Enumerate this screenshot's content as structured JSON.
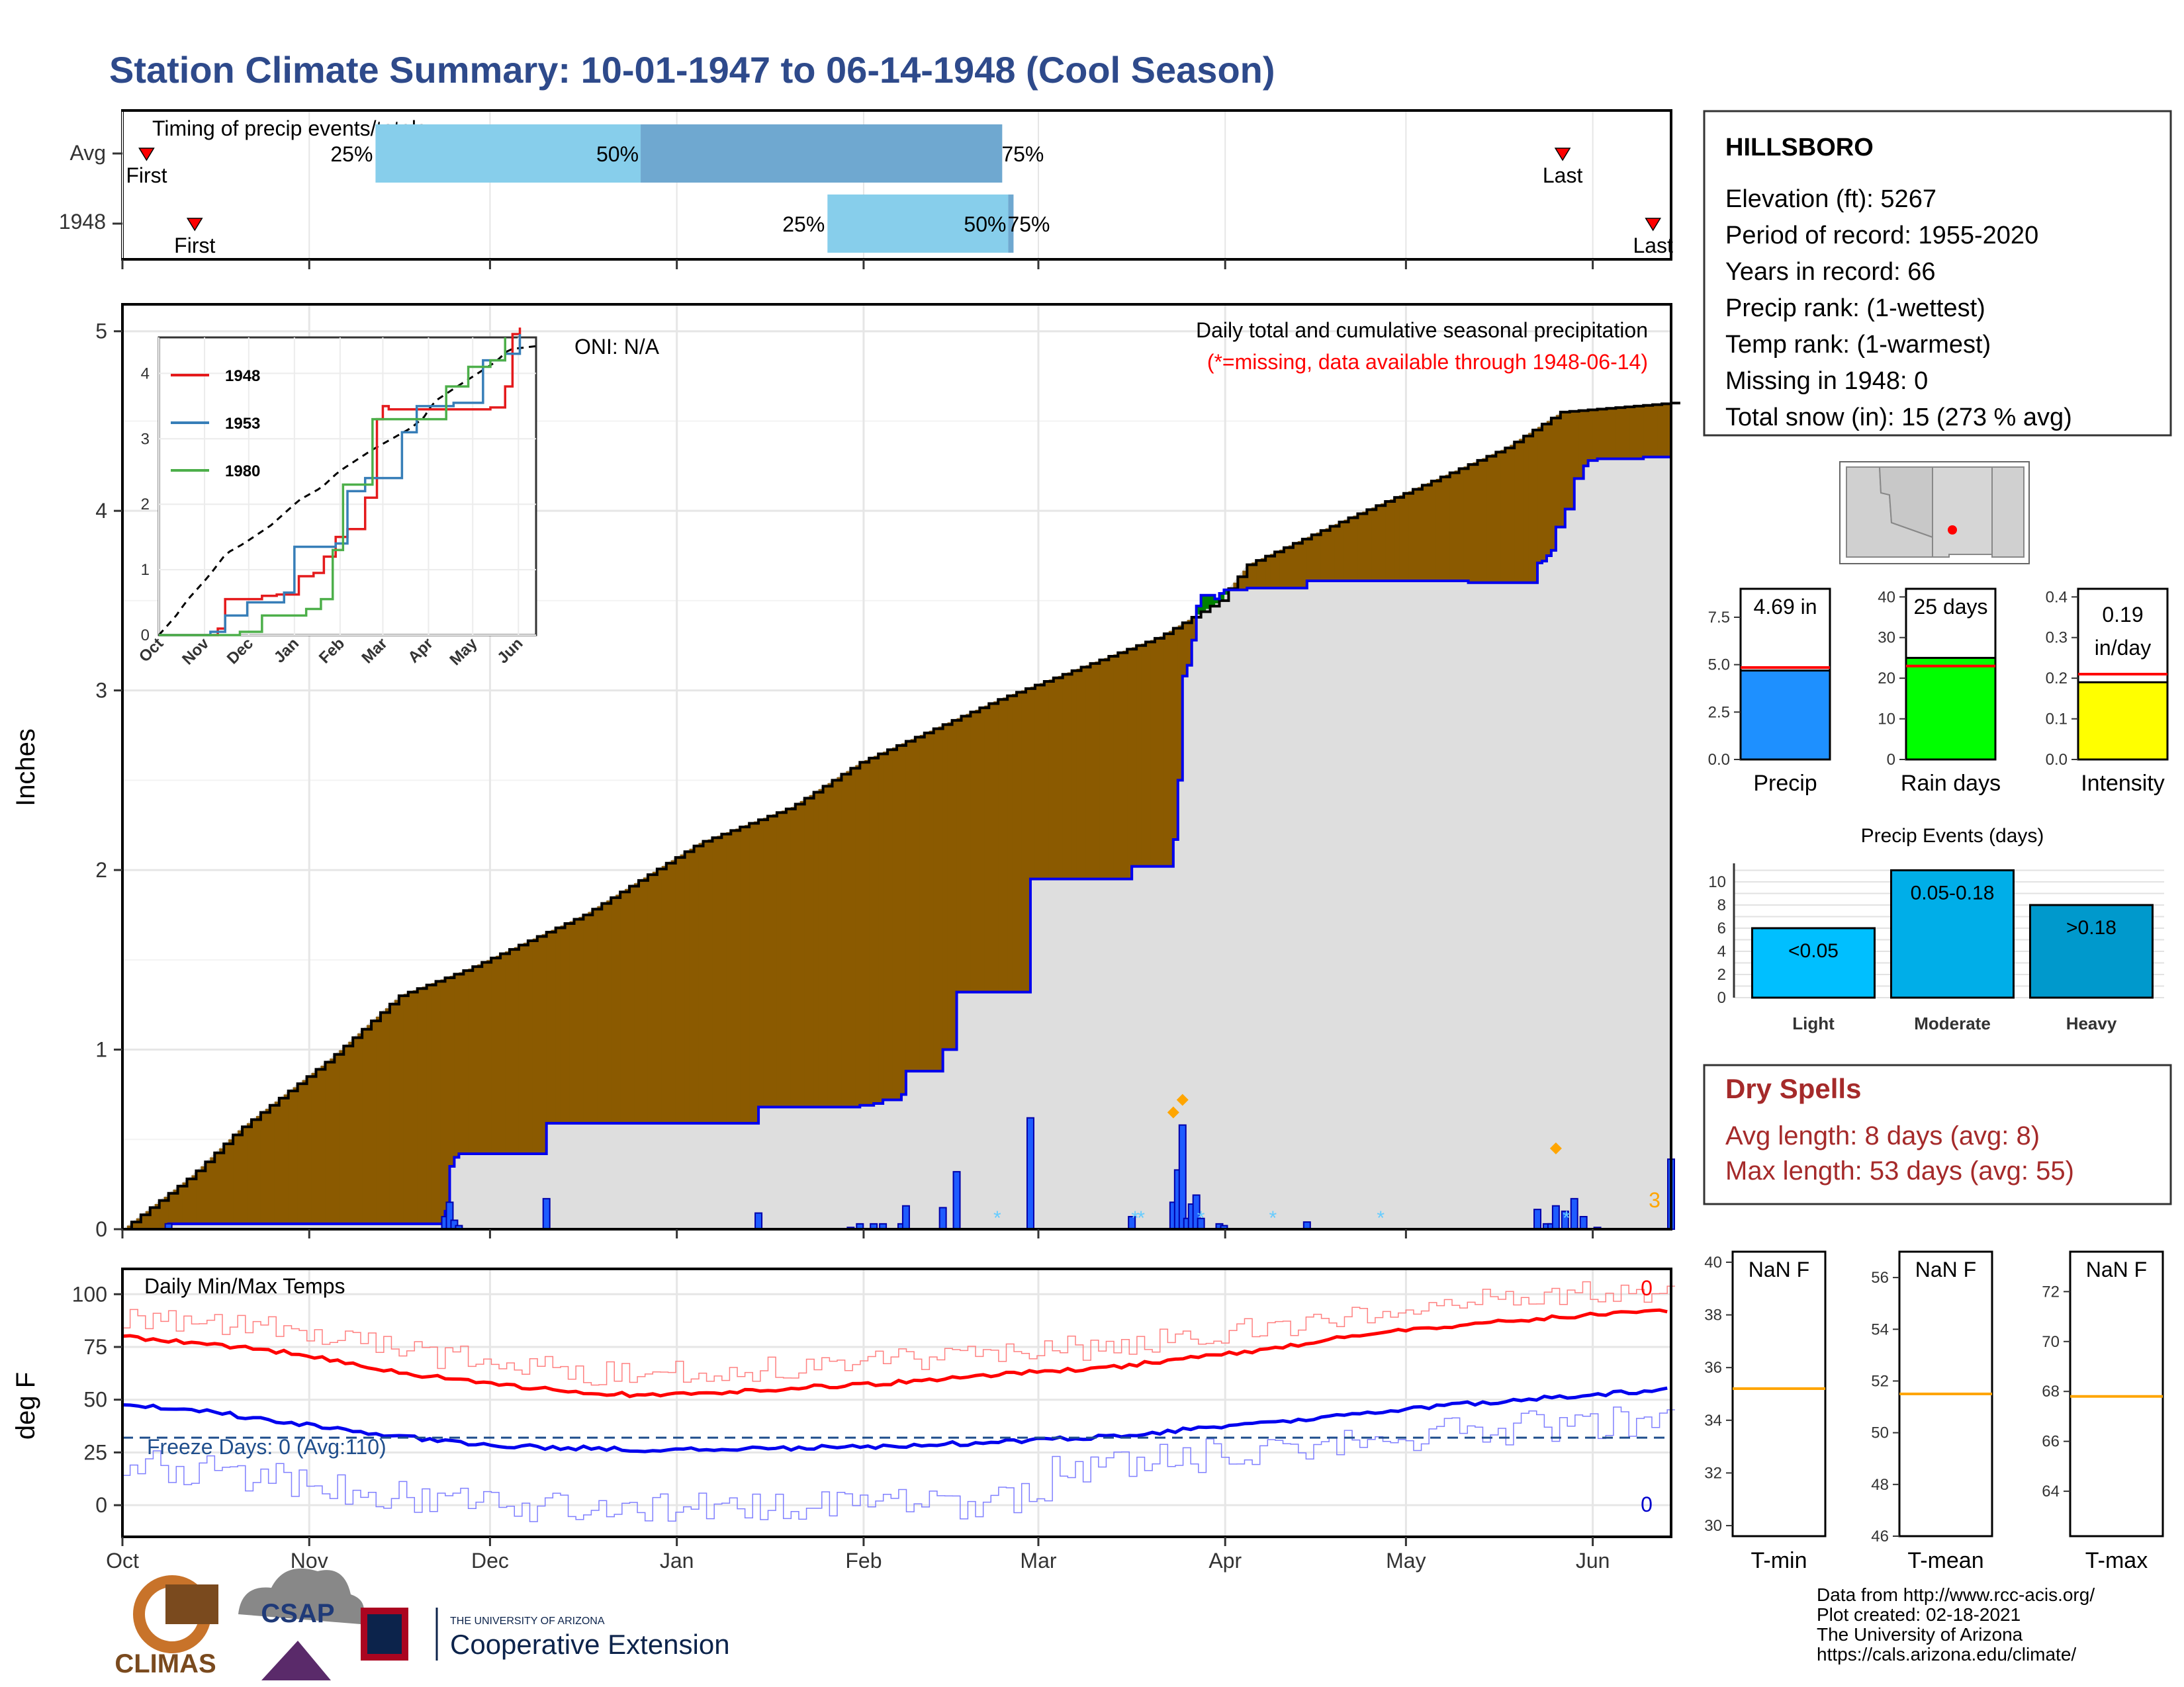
{
  "title": "Station Climate Summary: 10-01-1947 to 06-14-1948 (Cool Season)",
  "months": [
    "Oct",
    "Nov",
    "Dec",
    "Jan",
    "Feb",
    "Mar",
    "Apr",
    "May",
    "Jun"
  ],
  "timing": {
    "title": "Timing of precip events/totals",
    "rows": [
      {
        "label": "Avg",
        "first_label": "First",
        "last_label": "Last",
        "first_day": 4,
        "last_day": 239,
        "q25": 42,
        "q50": 86,
        "q75": 146,
        "q25_label": "25%",
        "q50_label": "50%",
        "q75_label": "75%"
      },
      {
        "label": "1948",
        "first_label": "First",
        "last_label": "Last",
        "first_day": 12,
        "last_day": 254,
        "q25": 117,
        "q50": 147,
        "q75": 147,
        "q25_label": "25%",
        "q50_label": "50%",
        "q75_label": "75%"
      }
    ]
  },
  "precip_panel": {
    "title": "Daily total and cumulative seasonal precipitation",
    "subtitle": "(*=missing, data available through 1948-06-14)",
    "oni": "ONI: N/A",
    "ylabel": "Inches",
    "y_ticks": [
      "0",
      "1",
      "2",
      "3",
      "4",
      "5"
    ],
    "corner_count": "3"
  },
  "inset": {
    "x_ticks": [
      "Oct",
      "Nov",
      "Dec",
      "Jan",
      "Feb",
      "Mar",
      "Apr",
      "May",
      "Jun"
    ],
    "y_ticks": [
      "0",
      "1",
      "2",
      "3",
      "4"
    ],
    "legend": [
      {
        "name": "1948",
        "color": "#e41a1c"
      },
      {
        "name": "1953",
        "color": "#377eb8"
      },
      {
        "name": "1980",
        "color": "#4daf4a"
      }
    ]
  },
  "temp_panel": {
    "title": "Daily Min/Max Temps",
    "ylabel": "deg F",
    "y_ticks": [
      "0",
      "25",
      "50",
      "75",
      "100"
    ],
    "freeze_text": "Freeze Days: 0 (Avg:110)",
    "max_count": "0",
    "min_count": "0"
  },
  "station": {
    "name": "HILLSBORO",
    "lines": [
      "Elevation (ft): 5267",
      "Period of record: 1955-2020",
      "Years in record: 66",
      "Precip rank:  (1-wettest)",
      "Temp rank:  (1-warmest)",
      "Missing in 1948: 0",
      "Total snow (in): 15 (273 % avg)"
    ]
  },
  "mini_bars": [
    {
      "label": "Precip",
      "value_text": "4.69 in",
      "value": 4.69,
      "avg": 4.85,
      "ymax": 9.0,
      "ticks": [
        "0.0",
        "2.5",
        "5.0",
        "7.5"
      ],
      "tick_vals": [
        0,
        2.5,
        5,
        7.5
      ],
      "color": "#1e90ff"
    },
    {
      "label": "Rain days",
      "value_text": "25 days",
      "value": 25,
      "avg": 23,
      "ymax": 42,
      "ticks": [
        "0",
        "10",
        "20",
        "30",
        "40"
      ],
      "tick_vals": [
        0,
        10,
        20,
        30,
        40
      ],
      "color": "#00ff00"
    },
    {
      "label": "Intensity",
      "value_text": "0.19 in/day",
      "value": 0.19,
      "avg": 0.21,
      "ymax": 0.42,
      "ticks": [
        "0.0",
        "0.1",
        "0.2",
        "0.3",
        "0.4"
      ],
      "tick_vals": [
        0,
        0.1,
        0.2,
        0.3,
        0.4
      ],
      "color": "#ffff00"
    }
  ],
  "events": {
    "title": "Precip Events (days)",
    "y_ticks": [
      "0",
      "2",
      "4",
      "6",
      "8",
      "10"
    ],
    "bars": [
      {
        "label": "Light",
        "range": "<0.05",
        "value": 6,
        "color": "#00bfff"
      },
      {
        "label": "Moderate",
        "range": "0.05-0.18",
        "value": 11,
        "color": "#00aee8"
      },
      {
        "label": "Heavy",
        "range": ">0.18",
        "value": 8,
        "color": "#0099cc"
      }
    ]
  },
  "dry_spells": {
    "title": "Dry Spells",
    "avg_line": "Avg length: 8 days (avg: 8)",
    "max_line": "Max length: 53 days (avg: 55)"
  },
  "temp_boxes": [
    {
      "label": "T-min",
      "value_text": "NaN F",
      "ticks": [
        "30",
        "32",
        "34",
        "36",
        "38",
        "40"
      ],
      "tick_vals": [
        30,
        32,
        34,
        36,
        38,
        40
      ],
      "ymin": 29.6,
      "ymax": 40.4,
      "avg": 35.2
    },
    {
      "label": "T-mean",
      "value_text": "NaN F",
      "ticks": [
        "46",
        "48",
        "50",
        "52",
        "54",
        "56"
      ],
      "tick_vals": [
        46,
        48,
        50,
        52,
        54,
        56
      ],
      "ymin": 46.0,
      "ymax": 57.0,
      "avg": 51.5
    },
    {
      "label": "T-max",
      "value_text": "NaN F",
      "ticks": [
        "64",
        "66",
        "68",
        "70",
        "72"
      ],
      "tick_vals": [
        64,
        66,
        68,
        70,
        72
      ],
      "ymin": 62.2,
      "ymax": 73.6,
      "avg": 67.8
    }
  ],
  "footer": {
    "lines": [
      "Data from http://www.rcc-acis.org/",
      "Plot created: 02-18-2021",
      "The University of Arizona",
      "https://cals.arizona.edu/climate/"
    ],
    "logo_climas": "CLIMAS",
    "logo_csap": "CSAP",
    "logo_uofa_small": "THE UNIVERSITY OF ARIZONA",
    "logo_uofa_big": "Cooperative Extension"
  },
  "chart_data": {
    "type": "area",
    "title": "Daily total and cumulative seasonal precipitation",
    "ylabel": "Inches",
    "ylim": [
      0,
      5.15
    ],
    "x_unit": "days since Oct 1",
    "avg_cumulative": [
      [
        0,
        0
      ],
      [
        15,
        0.3
      ],
      [
        25,
        0.55
      ],
      [
        45,
        0.95
      ],
      [
        60,
        1.3
      ],
      [
        75,
        1.45
      ],
      [
        100,
        1.75
      ],
      [
        125,
        2.15
      ],
      [
        145,
        2.35
      ],
      [
        160,
        2.6
      ],
      [
        190,
        2.95
      ],
      [
        215,
        3.2
      ],
      [
        225,
        3.3
      ],
      [
        238,
        3.5
      ],
      [
        244,
        3.7
      ],
      [
        265,
        3.95
      ],
      [
        280,
        4.12
      ],
      [
        300,
        4.35
      ],
      [
        312,
        4.55
      ],
      [
        336,
        4.6
      ]
    ],
    "cumulative_1948": [
      [
        0,
        0
      ],
      [
        9,
        0
      ],
      [
        10,
        0.03
      ],
      [
        69,
        0.03
      ],
      [
        70,
        0.1
      ],
      [
        71,
        0.35
      ],
      [
        72,
        0.4
      ],
      [
        73,
        0.42
      ],
      [
        91,
        0.42
      ],
      [
        92,
        0.59
      ],
      [
        137,
        0.59
      ],
      [
        138,
        0.68
      ],
      [
        158,
        0.68
      ],
      [
        160,
        0.69
      ],
      [
        163,
        0.7
      ],
      [
        165,
        0.72
      ],
      [
        169,
        0.75
      ],
      [
        170,
        0.88
      ],
      [
        177,
        0.88
      ],
      [
        178,
        1.0
      ],
      [
        181,
        1.32
      ],
      [
        196,
        1.32
      ],
      [
        197,
        1.95
      ],
      [
        218,
        1.95
      ],
      [
        219,
        2.02
      ],
      [
        227,
        2.02
      ],
      [
        228,
        2.17
      ],
      [
        229,
        2.5
      ],
      [
        230,
        3.08
      ],
      [
        231,
        3.14
      ],
      [
        232,
        3.28
      ],
      [
        233,
        3.47
      ],
      [
        234,
        3.53
      ],
      [
        237,
        3.51
      ],
      [
        238,
        3.54
      ],
      [
        239,
        3.56
      ],
      [
        242,
        3.56
      ],
      [
        244,
        3.57
      ],
      [
        256,
        3.57
      ],
      [
        257,
        3.61
      ],
      [
        289,
        3.61
      ],
      [
        292,
        3.6
      ],
      [
        306,
        3.6
      ],
      [
        307,
        3.71
      ],
      [
        308,
        3.72
      ],
      [
        309,
        3.75
      ],
      [
        310,
        3.78
      ],
      [
        311,
        3.91
      ],
      [
        313,
        4.01
      ],
      [
        315,
        4.18
      ],
      [
        317,
        4.25
      ],
      [
        318,
        4.28
      ],
      [
        320,
        4.29
      ],
      [
        330,
        4.3
      ],
      [
        336,
        4.69
      ]
    ],
    "daily_1948": [
      [
        10,
        0.03
      ],
      [
        70,
        0.07
      ],
      [
        71,
        0.15
      ],
      [
        72,
        0.05
      ],
      [
        73,
        0.02
      ],
      [
        92,
        0.17
      ],
      [
        138,
        0.09
      ],
      [
        158,
        0.01
      ],
      [
        160,
        0.03
      ],
      [
        163,
        0.03
      ],
      [
        165,
        0.03
      ],
      [
        169,
        0.03
      ],
      [
        170,
        0.13
      ],
      [
        178,
        0.12
      ],
      [
        181,
        0.32
      ],
      [
        197,
        0.62
      ],
      [
        219,
        0.07
      ],
      [
        228,
        0.15
      ],
      [
        229,
        0.33
      ],
      [
        230,
        0.58
      ],
      [
        231,
        0.06
      ],
      [
        232,
        0.14
      ],
      [
        233,
        0.19
      ],
      [
        234,
        0.06
      ],
      [
        238,
        0.03
      ],
      [
        239,
        0.02
      ],
      [
        257,
        0.04
      ],
      [
        307,
        0.11
      ],
      [
        309,
        0.03
      ],
      [
        310,
        0.03
      ],
      [
        311,
        0.13
      ],
      [
        313,
        0.1
      ],
      [
        315,
        0.17
      ],
      [
        317,
        0.07
      ],
      [
        320,
        0.01
      ],
      [
        336,
        0.39
      ]
    ],
    "temps": {
      "max_avg": [
        [
          0,
          80
        ],
        [
          20,
          77
        ],
        [
          40,
          73
        ],
        [
          60,
          67
        ],
        [
          80,
          61
        ],
        [
          100,
          57
        ],
        [
          120,
          53
        ],
        [
          140,
          52
        ],
        [
          170,
          55
        ],
        [
          200,
          58
        ],
        [
          230,
          62
        ],
        [
          260,
          66
        ],
        [
          290,
          72
        ],
        [
          320,
          80
        ],
        [
          350,
          86
        ],
        [
          380,
          90
        ],
        [
          403,
          92
        ]
      ],
      "min_avg": [
        [
          0,
          48
        ],
        [
          20,
          45
        ],
        [
          40,
          40
        ],
        [
          60,
          35
        ],
        [
          80,
          31
        ],
        [
          100,
          28
        ],
        [
          120,
          27
        ],
        [
          140,
          26
        ],
        [
          170,
          27
        ],
        [
          200,
          28
        ],
        [
          230,
          30
        ],
        [
          260,
          33
        ],
        [
          290,
          38
        ],
        [
          320,
          43
        ],
        [
          350,
          48
        ],
        [
          380,
          52
        ],
        [
          403,
          55
        ]
      ],
      "freeze_line": 32
    }
  }
}
